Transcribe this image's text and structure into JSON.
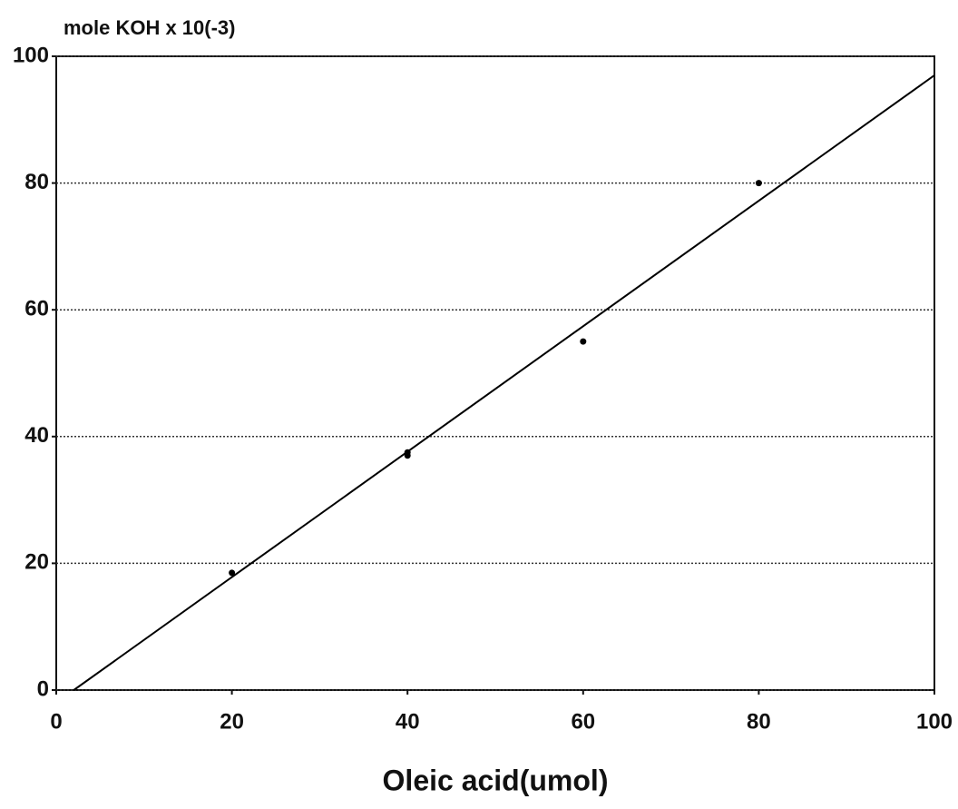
{
  "chart_data": {
    "type": "scatter",
    "y_label": "mole KOH x 10(-3)",
    "x_label": "Oleic acid(umol)",
    "xlim": [
      0,
      100
    ],
    "ylim": [
      0,
      100
    ],
    "xticks": [
      0,
      20,
      40,
      60,
      80,
      100
    ],
    "yticks": [
      0,
      20,
      40,
      60,
      80,
      100
    ],
    "grid": "y",
    "series": [
      {
        "mode": "markers",
        "color": "#000000",
        "x": [
          20,
          40,
          40,
          60,
          80
        ],
        "values": [
          18.5,
          37.5,
          37,
          55,
          80
        ]
      },
      {
        "mode": "line",
        "color": "#000000",
        "x": [
          2,
          100
        ],
        "values": [
          0,
          97
        ]
      }
    ]
  }
}
